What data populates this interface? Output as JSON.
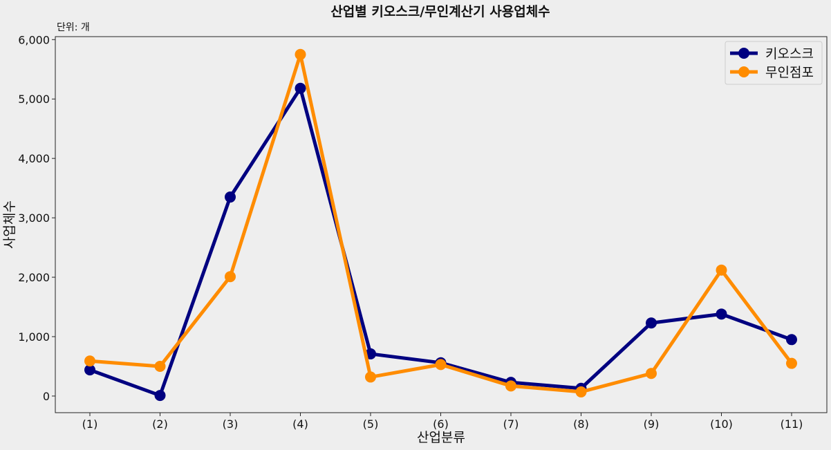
{
  "chart_data": {
    "type": "line",
    "title": "산업별 키오스크/무인계산기 사용업체수",
    "unit_label": "단위: 개",
    "xlabel": "산업분류",
    "ylabel": "사업체수",
    "categories": [
      "(1)",
      "(2)",
      "(3)",
      "(4)",
      "(5)",
      "(6)",
      "(7)",
      "(8)",
      "(9)",
      "(10)",
      "(11)"
    ],
    "series": [
      {
        "name": "키오스크",
        "color": "#000080",
        "values": [
          440,
          10,
          3350,
          5180,
          710,
          560,
          230,
          130,
          1230,
          1380,
          950
        ]
      },
      {
        "name": "무인점포",
        "color": "#ff8c00",
        "values": [
          590,
          500,
          2010,
          5750,
          320,
          530,
          170,
          70,
          380,
          2120,
          550
        ]
      }
    ],
    "ylim": [
      -280,
      6050
    ],
    "yticks": [
      0,
      1000,
      2000,
      3000,
      4000,
      5000,
      6000
    ],
    "ytick_labels": [
      "0",
      "1,000",
      "2,000",
      "3,000",
      "4,000",
      "5,000",
      "6,000"
    ],
    "grid": false,
    "legend_position": "top-right"
  }
}
